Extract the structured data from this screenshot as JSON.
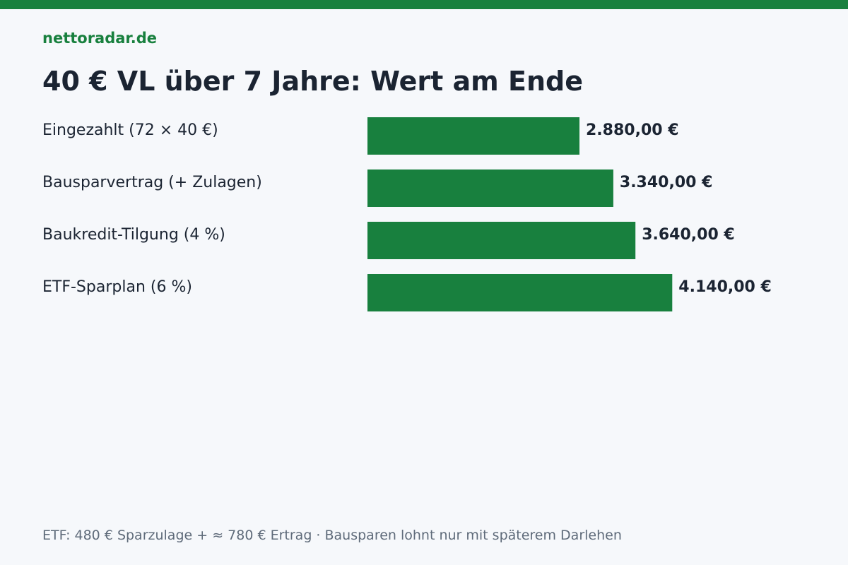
{
  "brand": "nettoradar.de",
  "title": "40 € VL über 7 Jahre: Wert am Ende",
  "footnote": "ETF: 480 € Sparzulage + ≈ 780 € Ertrag · Bausparen lohnt nur mit späterem Darlehen",
  "colors": {
    "accent": "#18803e",
    "text": "#1b2432",
    "muted": "#5f6b7a",
    "background": "#f6f8fb"
  },
  "chart_data": {
    "type": "bar",
    "orientation": "horizontal",
    "title": "40 € VL über 7 Jahre: Wert am Ende",
    "categories": [
      "Eingezahlt (72 × 40 €)",
      "Bausparvertrag (+ Zulagen)",
      "Baukredit-Tilgung (4 %)",
      "ETF-Sparplan (6 %)"
    ],
    "values": [
      2880,
      3340,
      3640,
      4140
    ],
    "value_labels": [
      "2.880,00 €",
      "3.340,00 €",
      "3.640,00 €",
      "4.140,00 €"
    ],
    "unit": "€",
    "bar_color": "#18803e",
    "grid": false,
    "legend": "none"
  }
}
